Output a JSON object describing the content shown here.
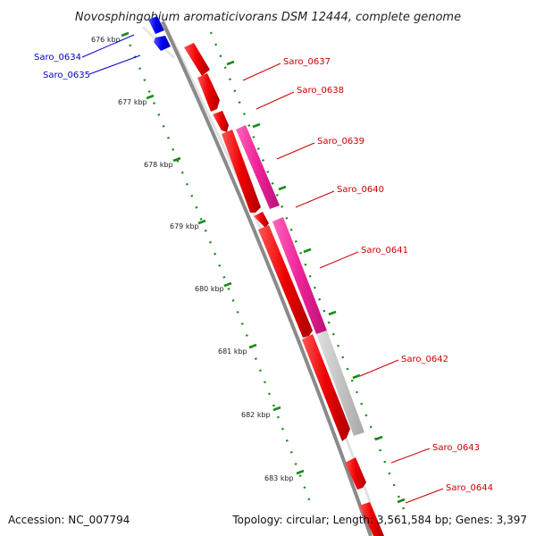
{
  "title": "Novosphingobium aromaticivorans DSM 12444, complete genome",
  "footer": {
    "accession": "Accession: NC_007794",
    "stats": "Topology: circular; Length: 3,561,584 bp; Genes: 3,397"
  },
  "colors": {
    "forward_gene": "#ee1111",
    "reverse_gene": "#1111ee",
    "highlight_gene": "#ee2299",
    "gray_gene": "#c4c4c4",
    "backbone": "#8a8a8a",
    "ticks": "#1a8a1a",
    "red_label": "#cc0000",
    "blue_label": "#0000cc"
  },
  "kbp_labels": [
    "676 kbp",
    "677 kbp",
    "678 kbp",
    "679 kbp",
    "680 kbp",
    "681 kbp",
    "682 kbp",
    "683 kbp"
  ],
  "gene_labels": {
    "reverse": [
      "Saro_0634",
      "Saro_0635"
    ],
    "forward": [
      "Saro_0637",
      "Saro_0638",
      "Saro_0639",
      "Saro_0640",
      "Saro_0641",
      "Saro_0642",
      "Saro_0643",
      "Saro_0644"
    ]
  }
}
